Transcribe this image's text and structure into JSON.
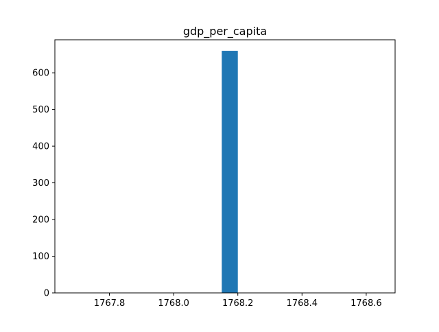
{
  "chart_data": {
    "type": "bar",
    "title": "gdp_per_capita",
    "xlabel": "",
    "ylabel": "",
    "xlim": [
      1767.63,
      1768.69
    ],
    "ylim": [
      0,
      690
    ],
    "x_ticks": [
      1767.8,
      1768.0,
      1768.2,
      1768.4,
      1768.6
    ],
    "x_tick_labels": [
      "1767.8",
      "1768.0",
      "1768.2",
      "1768.4",
      "1768.6"
    ],
    "y_ticks": [
      0,
      100,
      200,
      300,
      400,
      500,
      600
    ],
    "y_tick_labels": [
      "0",
      "100",
      "200",
      "300",
      "400",
      "500",
      "600"
    ],
    "bars": [
      {
        "x_start": 1768.15,
        "x_end": 1768.2,
        "value": 660
      }
    ],
    "grid": false,
    "legend": "none",
    "colors": {
      "bar": "#1f77b4",
      "axes": "#000000",
      "background": "#ffffff"
    }
  }
}
